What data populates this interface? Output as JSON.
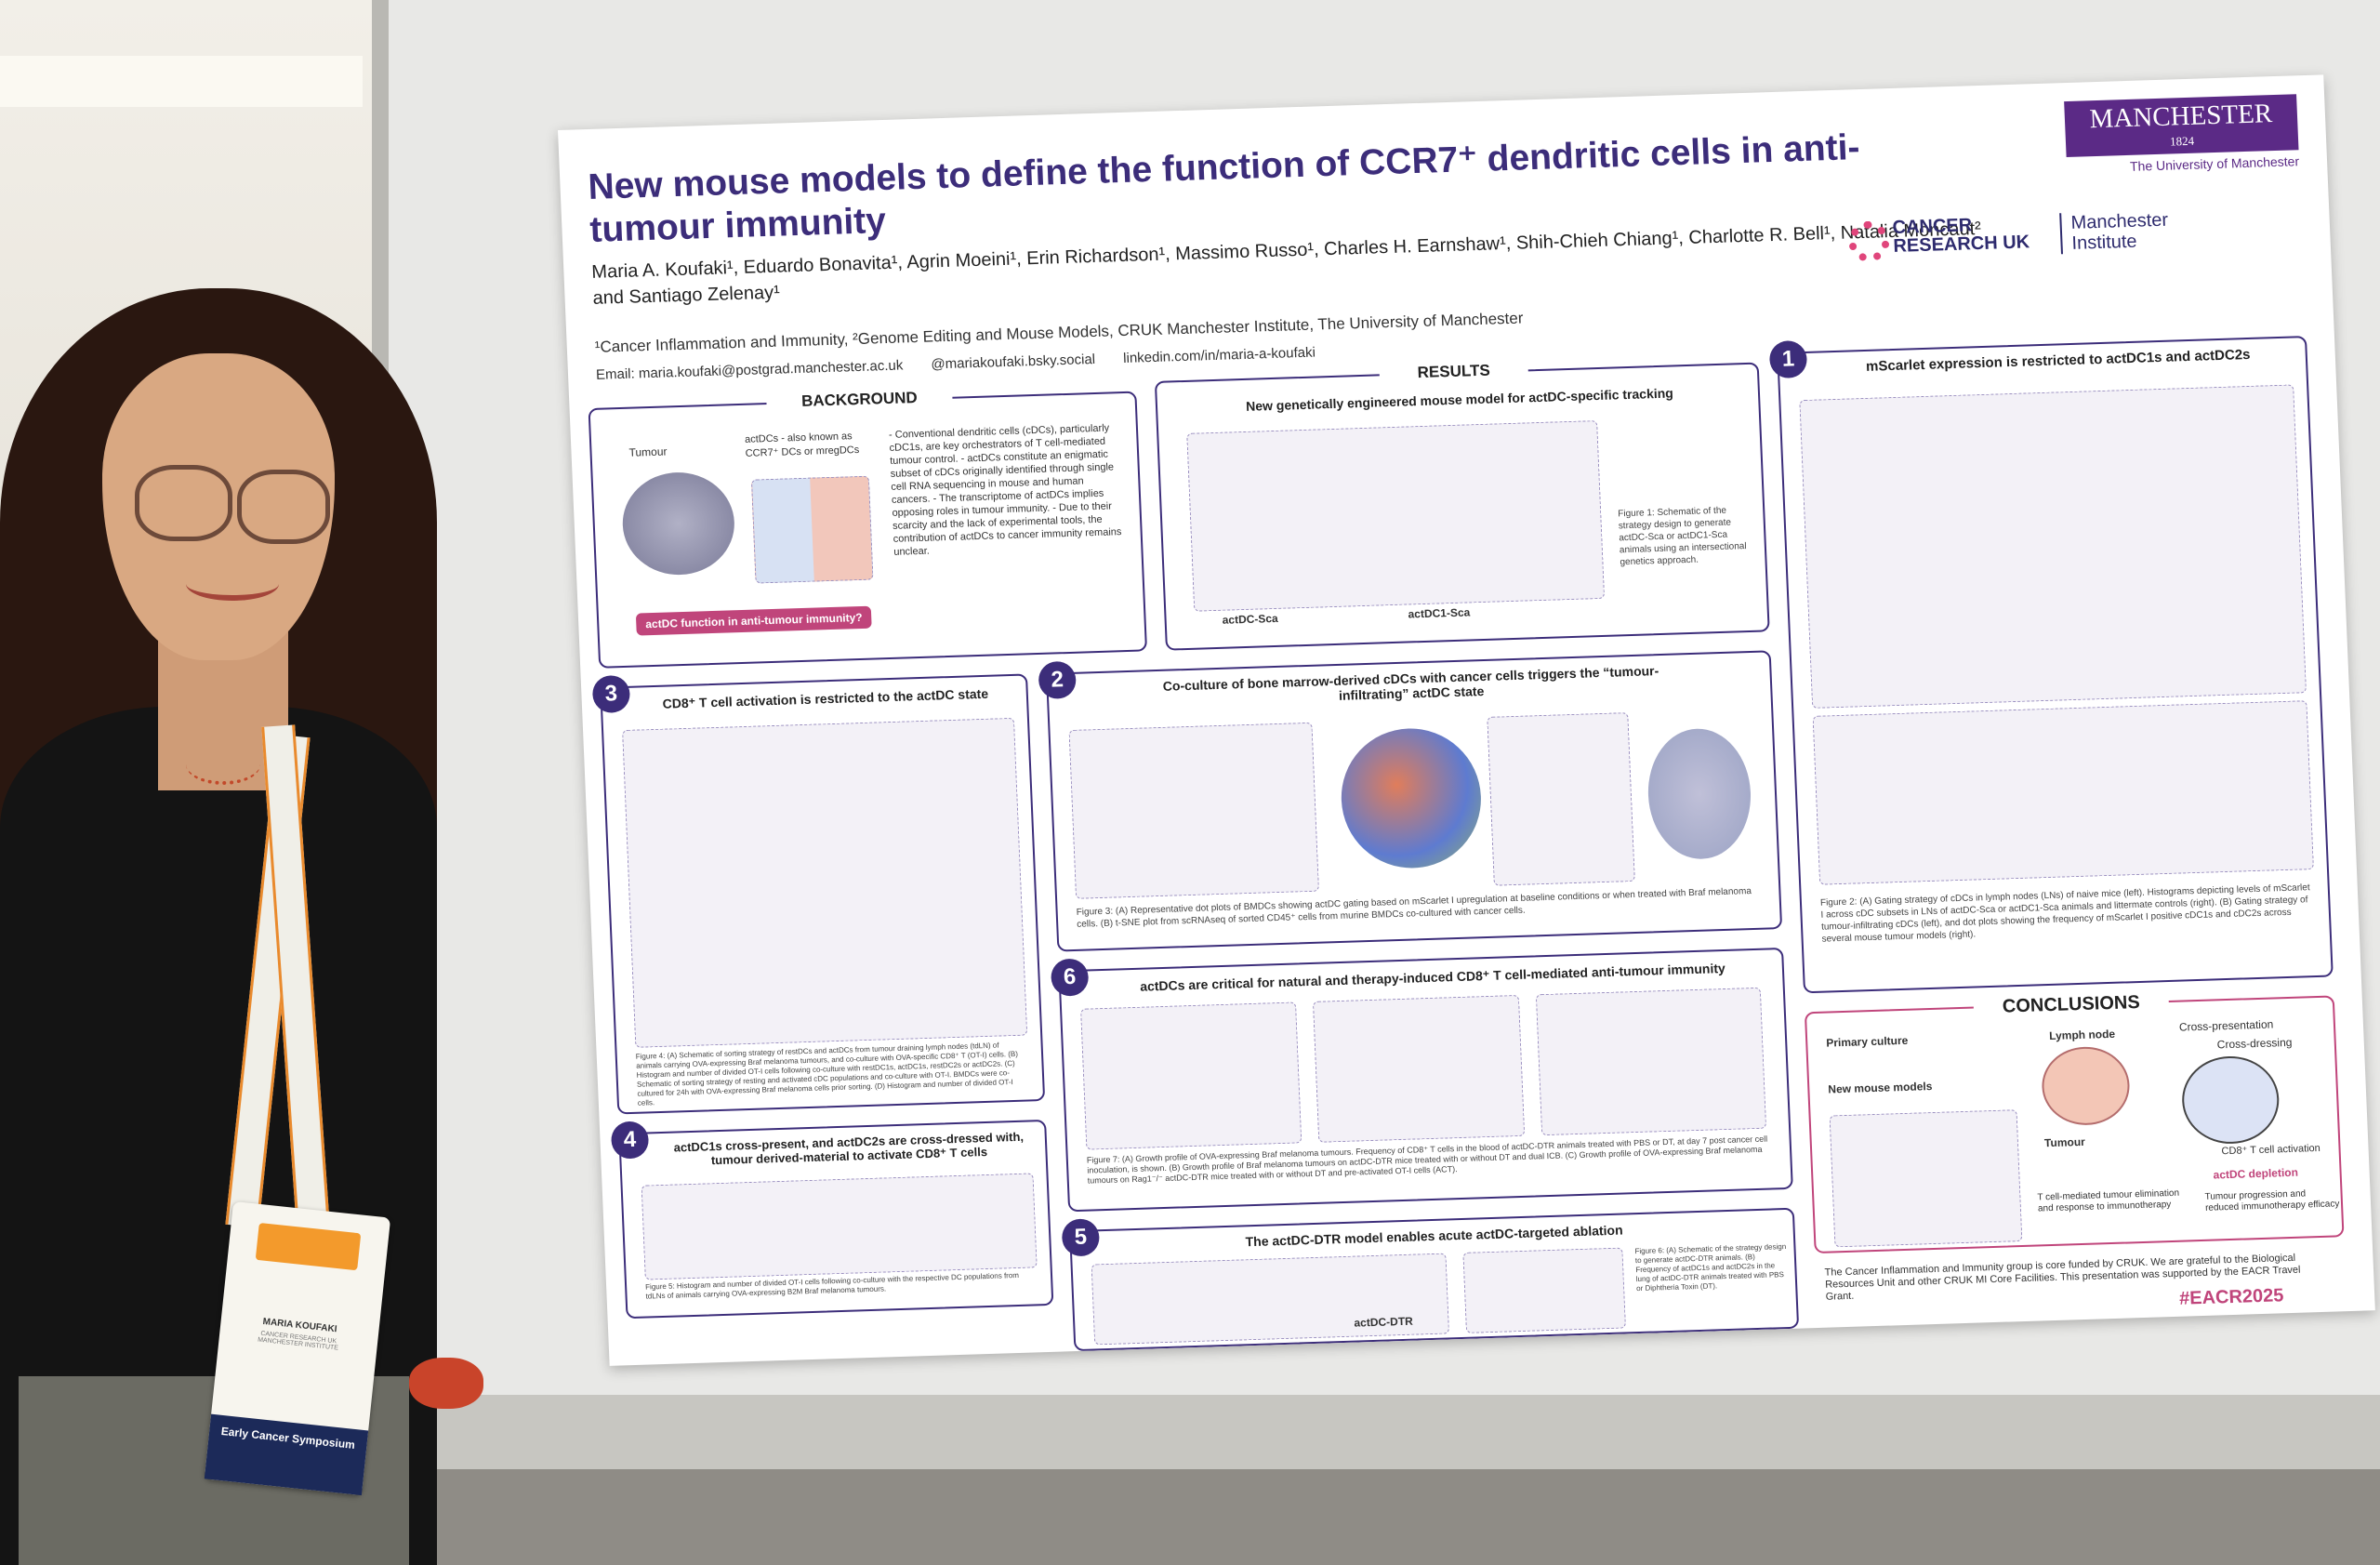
{
  "poster": {
    "title": "New mouse models to define the function of CCR7⁺ dendritic cells in anti-tumour immunity",
    "authors": "Maria A. Koufaki¹, Eduardo Bonavita¹, Agrin Moeini¹, Erin Richardson¹, Massimo Russo¹, Charles H. Earnshaw¹, Shih-Chieh Chiang¹, Charlotte R. Bell¹, Natalia Moncaut² and Santiago Zelenay¹",
    "affiliations": "¹Cancer Inflammation and Immunity, ²Genome Editing and Mouse Models, CRUK Manchester Institute, The University of Manchester",
    "email": "Email: maria.koufaki@postgrad.manchester.ac.uk",
    "bluesky": "@mariakoufaki.bsky.social",
    "linkedin": "linkedin.com/in/maria-a-koufaki",
    "logos": {
      "manchester": "MANCHESTER",
      "manchester_year": "1824",
      "manchester_sub": "The University of Manchester",
      "cruk": "CANCER RESEARCH UK",
      "institute": "Manchester Institute"
    },
    "sections": {
      "background": {
        "heading": "BACKGROUND",
        "tumour_label": "Tumour",
        "actdc_note": "actDCs - also known as CCR7⁺ DCs or mregDCs",
        "bullets": "- Conventional dendritic cells (cDCs), particularly cDC1s, are key orchestrators of T cell-mediated tumour control. - actDCs constitute an enigmatic subset of cDCs originally identified through single cell RNA sequencing in mouse and human cancers. - The transcriptome of actDCs implies opposing roles in tumour immunity. - Due to their scarcity and the lack of experimental tools, the contribution of actDCs to cancer immunity remains unclear.",
        "callout": "actDC function in anti-tumour immunity?"
      },
      "results": {
        "heading": "RESULTS",
        "subheading": "New genetically engineered mouse model for actDC-specific tracking",
        "fig1_caption": "Figure 1: Schematic of the strategy design to generate actDC-Sca or actDC1-Sca animals using an intersectional genetics approach.",
        "model_a": "actDC-Sca",
        "model_b": "actDC1-Sca"
      },
      "s1": {
        "num": "1",
        "heading": "mScarlet expression is restricted to actDC1s and actDC2s",
        "caption": "Figure 2: (A) Gating strategy of cDCs in lymph nodes (LNs) of naive mice (left). Histograms depicting levels of mScarlet I across cDC subsets in LNs of actDC-Sca or actDC1-Sca animals and littermate controls (right). (B) Gating strategy of tumour-infiltrating cDCs (left), and dot plots showing the frequency of mScarlet I positive cDC1s and cDC2s across several mouse tumour models (right)."
      },
      "s2": {
        "num": "2",
        "heading": "Co-culture of bone marrow-derived cDCs with cancer cells triggers the “tumour-infiltrating” actDC state",
        "caption": "Figure 3: (A) Representative dot plots of BMDCs showing actDC gating based on mScarlet I upregulation at baseline conditions or when treated with Braf melanoma cells. (B) t-SNE plot from scRNAseq of sorted CD45⁺ cells from murine BMDCs co-cultured with cancer cells."
      },
      "s3": {
        "num": "3",
        "heading": "CD8⁺ T cell activation is restricted to the actDC state",
        "caption": "Figure 4: (A) Schematic of sorting strategy of restDCs and actDCs from tumour draining lymph nodes (tdLN) of animals carrying OVA-expressing Braf melanoma tumours, and co-culture with OVA-specific CD8⁺ T (OT-I) cells. (B) Histogram and number of divided OT-I cells following co-culture with restDC1s, actDC1s, restDC2s or actDC2s. (C) Schematic of sorting strategy of resting and activated cDC populations and co-culture with OT-I. BMDCs were co-cultured for 24h with OVA-expressing Braf melanoma cells prior sorting. (D) Histogram and number of divided OT-I cells."
      },
      "s4": {
        "num": "4",
        "heading": "actDC1s cross-present, and actDC2s are cross-dressed with, tumour derived-material to activate CD8⁺ T cells",
        "caption": "Figure 5: Histogram and number of divided OT-I cells following co-culture with the respective DC populations from tdLNs of animals carrying OVA-expressing B2M Braf melanoma tumours."
      },
      "s5": {
        "num": "5",
        "heading": "The actDC-DTR model enables acute actDC-targeted ablation",
        "caption": "Figure 6: (A) Schematic of the strategy design to generate actDC-DTR animals. (B) Frequency of actDC1s and actDC2s in the lung of actDC-DTR animals treated with PBS or Diphtheria Toxin (DT).",
        "model": "actDC-DTR"
      },
      "s6": {
        "num": "6",
        "heading": "actDCs are critical for natural and therapy-induced CD8⁺ T cell-mediated anti-tumour immunity",
        "caption": "Figure 7: (A) Growth profile of OVA-expressing Braf melanoma tumours. Frequency of CD8⁺ T cells in the blood of actDC-DTR animals treated with PBS or DT, at day 7 post cancer cell inoculation, is shown. (B) Growth profile of Braf melanoma tumours on actDC-DTR mice treated with or without DT and dual ICB. (C) Growth profile of OVA-expressing Braf melanoma tumours on Rag1⁻/⁻ actDC-DTR mice treated with or without DT and pre-activated OT-I cells (ACT)."
      },
      "conclusions": {
        "heading": "CONCLUSIONS",
        "primary_culture": "Primary culture",
        "new_models": "New mouse models",
        "lymph_node": "Lymph node",
        "tumour": "Tumour",
        "cross_presentation": "Cross-presentation",
        "cross_dressing": "Cross-dressing",
        "t_activation": "CD8⁺ T cell activation",
        "depletion": "actDC depletion",
        "progression": "Tumour progression and reduced immunotherapy efficacy",
        "elimination": "T cell-mediated tumour elimination and response to immunotherapy"
      },
      "acknowledgements": "The Cancer Inflammation and Immunity group is core funded by CRUK. We are grateful to the Biological Resources Unit and other CRUK MI Core Facilities. This presentation was supported by the EACR Travel Grant.",
      "hashtag": "#EACR2025"
    }
  },
  "badge": {
    "name": "MARIA KOUFAKI",
    "affiliation": "CANCER RESEARCH UK MANCHESTER INSTITUTE",
    "strip": "Early Cancer Symposium"
  }
}
